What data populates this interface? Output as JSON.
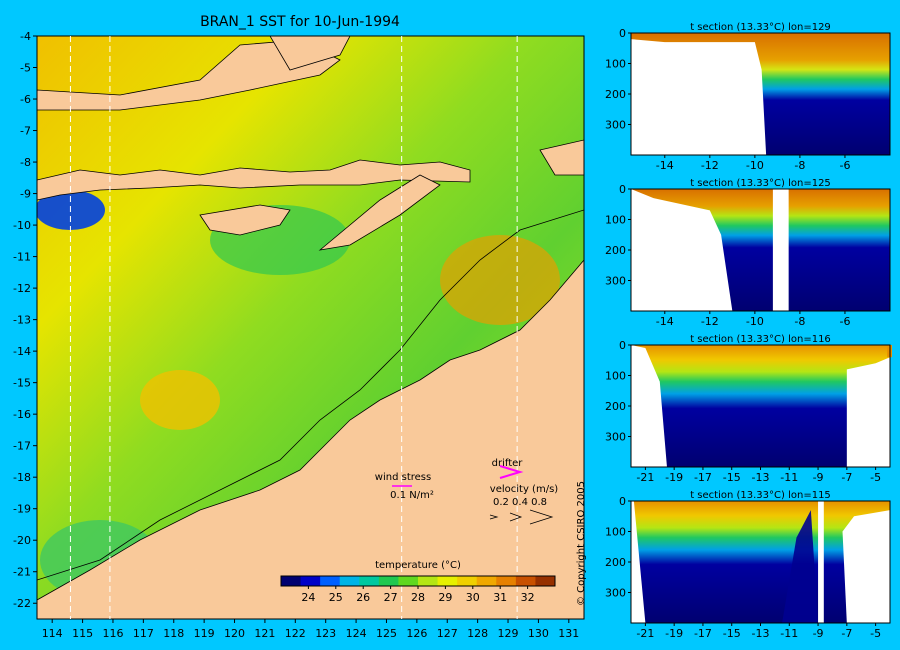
{
  "chart_data": [
    {
      "type": "heatmap",
      "title": "BRAN_1 SST for 10-Jun-1994",
      "xlim": [
        113.5,
        131.5
      ],
      "ylim": [
        -22.5,
        -4
      ],
      "x_ticks": [
        "114",
        "115",
        "116",
        "117",
        "118",
        "119",
        "120",
        "121",
        "122",
        "123",
        "124",
        "125",
        "126",
        "127",
        "128",
        "129",
        "130",
        "131"
      ],
      "y_ticks": [
        "-4",
        "-5",
        "-6",
        "-7",
        "-8",
        "-9",
        "-10",
        "-11",
        "-12",
        "-13",
        "-14",
        "-15",
        "-16",
        "-17",
        "-18",
        "-19",
        "-20",
        "-21",
        "-22"
      ],
      "section_lines_lon": [
        114.6,
        115.9,
        125.5,
        129.3
      ],
      "annotations": {
        "wind_stress_label": "wind stress",
        "wind_stress_value": "0.1 N/m²",
        "drifter_label": "drifter",
        "velocity_label": "velocity (m/s)",
        "velocity_values": "0.2 0.4 0.8",
        "colorbar_label": "temperature (°C)"
      },
      "colorbar": {
        "range": [
          23,
          33
        ],
        "ticks": [
          "24",
          "25",
          "26",
          "27",
          "28",
          "29",
          "30",
          "31",
          "32"
        ],
        "colors": [
          "#000070",
          "#0000c8",
          "#0060ff",
          "#00b4e6",
          "#00c8a0",
          "#20c850",
          "#60d820",
          "#b4e614",
          "#e6f000",
          "#f0d000",
          "#f0a800",
          "#e68000",
          "#c85000",
          "#963000"
        ]
      }
    },
    {
      "type": "heatmap",
      "title": "t section (13.33°C) lon=129",
      "x_ticks": [
        "-14",
        "-12",
        "-10",
        "-8",
        "-6"
      ],
      "y_ticks": [
        "0",
        "100",
        "200",
        "300"
      ],
      "xlim": [
        -15.5,
        -4
      ],
      "ylim": [
        0,
        400
      ]
    },
    {
      "type": "heatmap",
      "title": "t section (13.33°C) lon=125",
      "x_ticks": [
        "-14",
        "-12",
        "-10",
        "-8",
        "-6"
      ],
      "y_ticks": [
        "0",
        "100",
        "200",
        "300"
      ],
      "xlim": [
        -15.5,
        -4
      ],
      "ylim": [
        0,
        400
      ]
    },
    {
      "type": "heatmap",
      "title": "t section (13.33°C) lon=116",
      "x_ticks": [
        "-21",
        "-19",
        "-17",
        "-15",
        "-13",
        "-11",
        "-9",
        "-7",
        "-5"
      ],
      "y_ticks": [
        "0",
        "100",
        "200",
        "300"
      ],
      "xlim": [
        -22,
        -4
      ],
      "ylim": [
        0,
        400
      ]
    },
    {
      "type": "heatmap",
      "title": "t section (13.33°C) lon=115",
      "x_ticks": [
        "-21",
        "-19",
        "-17",
        "-15",
        "-13",
        "-11",
        "-9",
        "-7",
        "-5"
      ],
      "y_ticks": [
        "0",
        "100",
        "200",
        "300"
      ],
      "xlim": [
        -22,
        -4
      ],
      "ylim": [
        0,
        400
      ]
    }
  ],
  "copyright": "© Copyright CSIRO 2005"
}
